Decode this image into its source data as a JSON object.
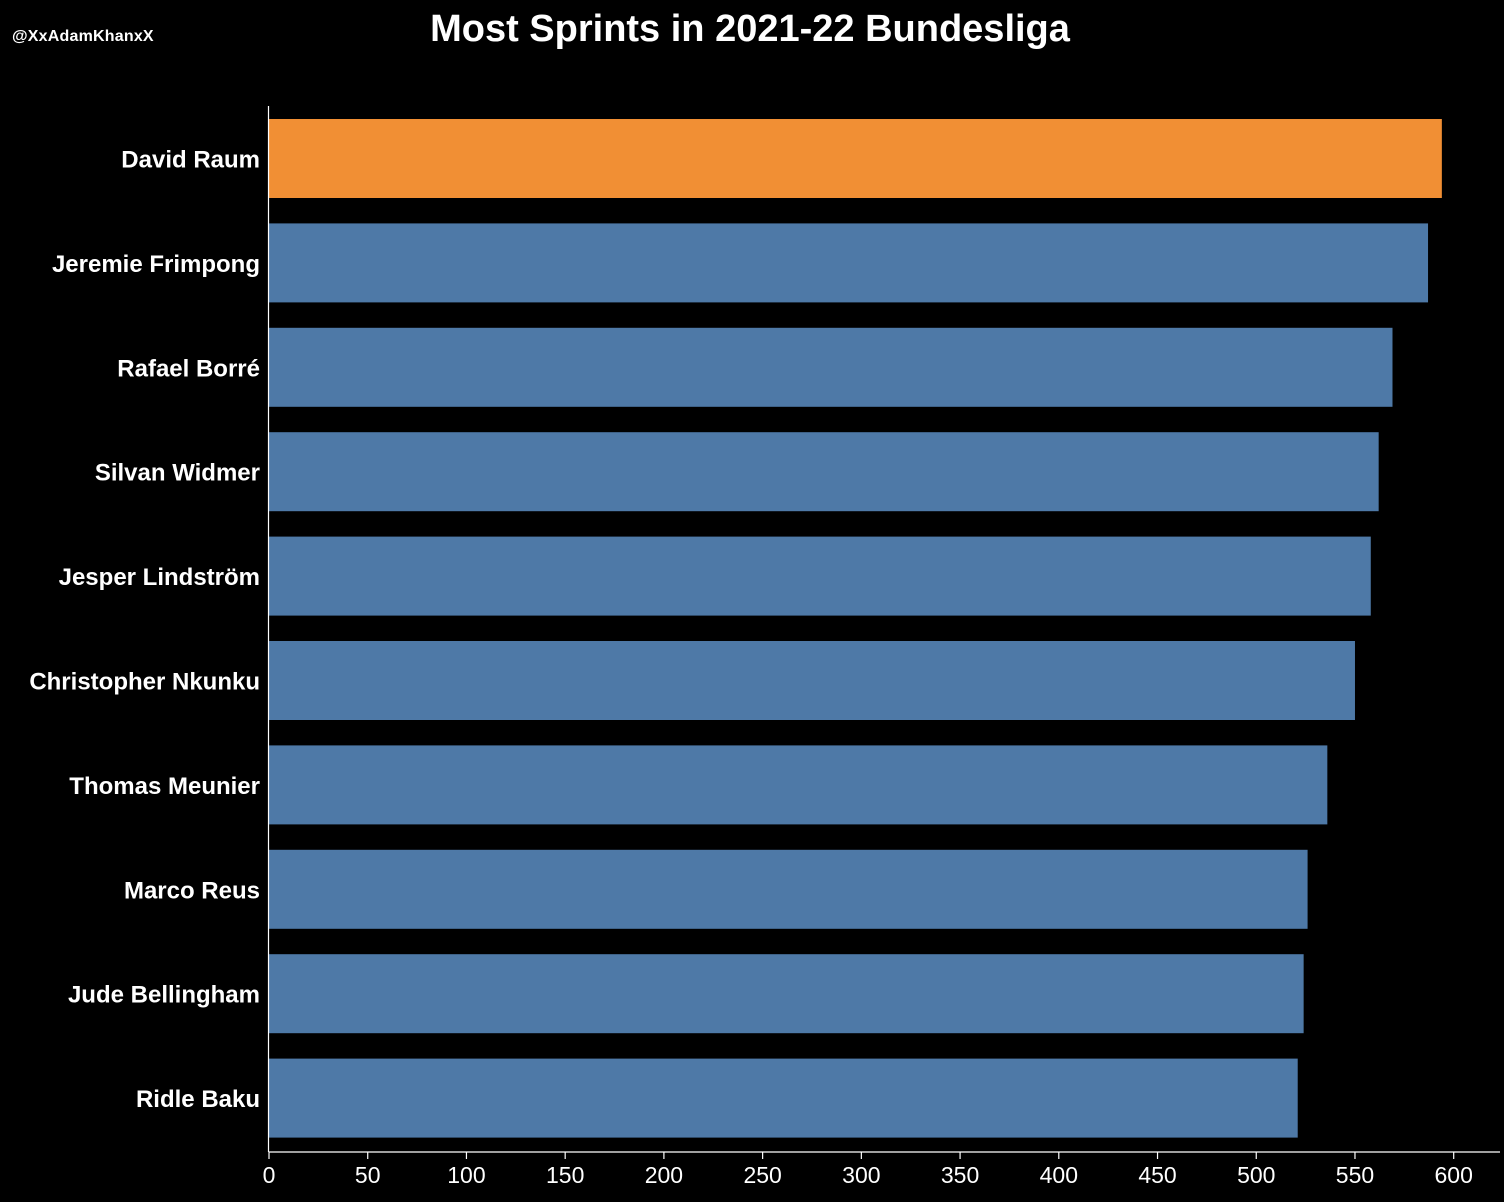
{
  "handle": "@XxAdamKhanxX",
  "chart_data": {
    "type": "bar",
    "orientation": "horizontal",
    "title": "Most Sprints in 2021-22 Bundesliga",
    "xlabel": "",
    "ylabel": "",
    "categories": [
      "David Raum",
      "Jeremie Frimpong",
      "Rafael Borré",
      "Silvan Widmer",
      "Jesper Lindström",
      "Christopher Nkunku",
      "Thomas Meunier",
      "Marco Reus",
      "Jude Bellingham",
      "Ridle Baku"
    ],
    "values": [
      594,
      587,
      569,
      562,
      558,
      550,
      536,
      526,
      524,
      521
    ],
    "highlight_index": 0,
    "xlim": [
      0,
      625
    ],
    "xticks": [
      0,
      50,
      100,
      150,
      200,
      250,
      300,
      350,
      400,
      450,
      500,
      550,
      600
    ],
    "grid": false,
    "colors": {
      "highlight": "#F18F34",
      "bar": "#4E79A7",
      "background": "#000000",
      "text": "#FFFFFF"
    }
  }
}
